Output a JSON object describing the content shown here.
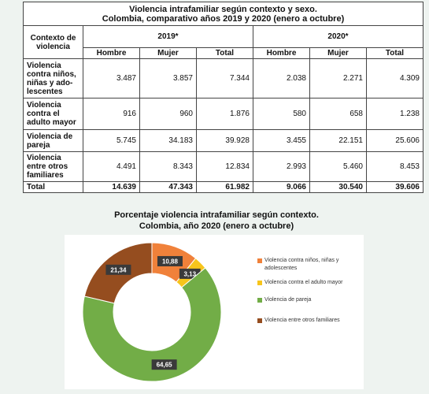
{
  "table": {
    "title_line1": "Violencia intrafamiliar según contexto y sexo.",
    "title_line2": "Colombia, comparativo años 2019 y 2020 (enero a octubre)",
    "context_header": "Contexto de violencia",
    "year_2019": "2019*",
    "year_2020": "2020*",
    "subheaders": [
      "Hombre",
      "Mujer",
      "Total",
      "Hombre",
      "Mujer",
      "Total"
    ],
    "rows": [
      {
        "label": "Violencia contra niños, niñas y ado-lescentes",
        "values": [
          "3.487",
          "3.857",
          "7.344",
          "2.038",
          "2.271",
          "4.309"
        ]
      },
      {
        "label": "Violencia contra el adulto mayor",
        "values": [
          "916",
          "960",
          "1.876",
          "580",
          "658",
          "1.238"
        ]
      },
      {
        "label": "Violencia de pareja",
        "values": [
          "5.745",
          "34.183",
          "39.928",
          "3.455",
          "22.151",
          "25.606"
        ]
      },
      {
        "label": "Violencia entre otros familiares",
        "values": [
          "4.491",
          "8.343",
          "12.834",
          "2.993",
          "5.460",
          "8.453"
        ]
      }
    ],
    "total_row": {
      "label": "Total",
      "values": [
        "14.639",
        "47.343",
        "61.982",
        "9.066",
        "30.540",
        "39.606"
      ]
    }
  },
  "chart_data": {
    "type": "pie",
    "title": "Porcentaje  violencia intrafamiliar según contexto. Colombia, año 2020 (enero a octubre)",
    "title_line1": "Porcentaje  violencia intrafamiliar según contexto.",
    "title_line2": "Colombia, año 2020 (enero a octubre)",
    "donut": true,
    "legend_position": "right",
    "categories": [
      "Violencia contra niños, niñas y adolescentes",
      "Violencia contra el adulto mayor",
      "Violencia de pareja",
      "Violencia entre otros familiares"
    ],
    "values": [
      10.88,
      3.13,
      64.65,
      21.34
    ],
    "labels": [
      "10,88",
      "3,13",
      "64,65",
      "21,34"
    ],
    "colors": [
      "#f0813a",
      "#f7c51c",
      "#72ad47",
      "#954d1f"
    ]
  },
  "colors": {
    "label_box": "#3a3a3a",
    "page_bg": "#eef3f0"
  }
}
